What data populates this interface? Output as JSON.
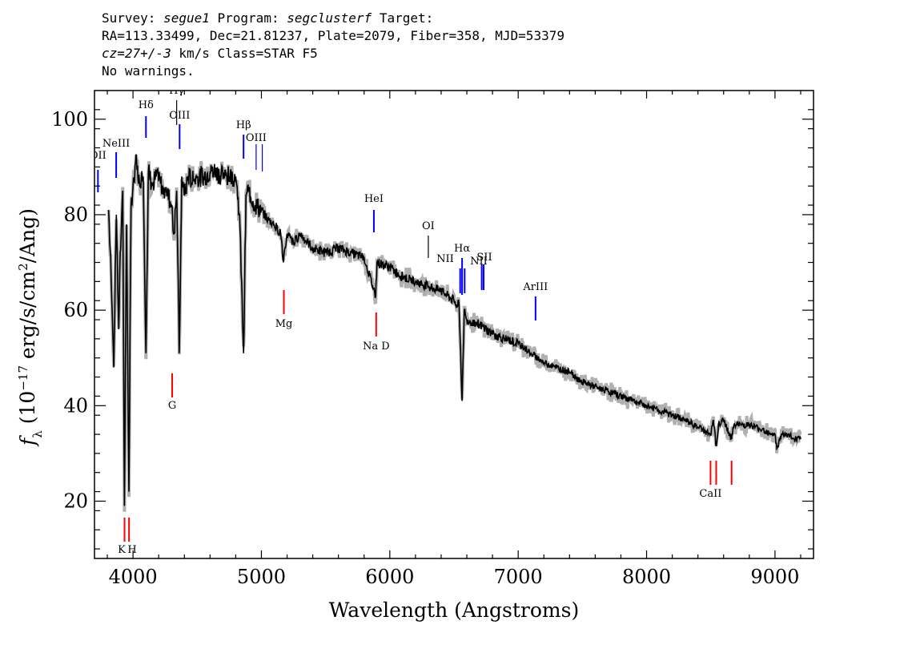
{
  "header": {
    "line1": {
      "survey_label": "Survey:",
      "survey": "segue1",
      "program_label": "Program:",
      "program": "segclusterf",
      "target_label": "Target:"
    },
    "line2": "RA=113.33499, Dec=21.81237, Plate=2079, Fiber=358, MJD=53379",
    "line3": {
      "cz": "cz=27+/-3",
      "rest": "km/s Class=STAR F5"
    },
    "line4": "No warnings."
  },
  "colors": {
    "emission": "#0000ff",
    "absorption": "#ff0000",
    "spectrum": "#000000",
    "error": "#b0b0b0"
  },
  "chart_data": {
    "type": "line",
    "xlabel": "Wavelength (Angstroms)",
    "ylabel": "f_λ (10^-17 erg/s/cm^2/Ang)",
    "xlim": [
      3700,
      9300
    ],
    "ylim": [
      8,
      106
    ],
    "x_ticks": [
      4000,
      5000,
      6000,
      7000,
      8000,
      9000
    ],
    "y_ticks": [
      20,
      40,
      60,
      80,
      100
    ],
    "series": [
      {
        "x": [
          3810,
          3830,
          3850,
          3870,
          3889,
          3900,
          3920,
          3933,
          3950,
          3968,
          3985,
          4000,
          4020,
          4050,
          4080,
          4101,
          4120,
          4150,
          4180,
          4200,
          4230,
          4260,
          4300,
          4320,
          4340,
          4360,
          4380,
          4400,
          4430,
          4470,
          4500,
          4550,
          4600,
          4650,
          4700,
          4750,
          4800,
          4830,
          4861,
          4880,
          4900,
          4950,
          5000,
          5050,
          5100,
          5150,
          5172,
          5200,
          5250,
          5300,
          5400,
          5500,
          5600,
          5700,
          5800,
          5890,
          5900,
          6000,
          6100,
          6200,
          6300,
          6400,
          6500,
          6540,
          6563,
          6580,
          6600,
          6700,
          6800,
          6900,
          7000,
          7100,
          7200,
          7300,
          7400,
          7500,
          7600,
          7700,
          7800,
          7900,
          8000,
          8100,
          8200,
          8300,
          8400,
          8498,
          8520,
          8542,
          8560,
          8600,
          8662,
          8680,
          8700,
          8800,
          8900,
          9000,
          9014,
          9050,
          9100,
          9150,
          9200
        ],
        "y": [
          81,
          67,
          48,
          80,
          56,
          72,
          85,
          19,
          78,
          22,
          82,
          86,
          91,
          87,
          88,
          51,
          89,
          86,
          88,
          87,
          86,
          85,
          82,
          76,
          85,
          51,
          88,
          84,
          88,
          87,
          88,
          88,
          89,
          89,
          88,
          88,
          88,
          80,
          51,
          84,
          85,
          82,
          81,
          79,
          78,
          76,
          70,
          76,
          74,
          76,
          73,
          72,
          73,
          72,
          71,
          63,
          70,
          69,
          67,
          66,
          65,
          64,
          62,
          61,
          41,
          60,
          58,
          57,
          55,
          54,
          53,
          51,
          49,
          48,
          47,
          45,
          44,
          43,
          42,
          41,
          40,
          39,
          38,
          37,
          35.5,
          34,
          37,
          31.5,
          36,
          37,
          33,
          36,
          36,
          36,
          35,
          34,
          31,
          34,
          34,
          33,
          33
        ]
      }
    ],
    "line_markers": [
      {
        "label": "OII",
        "wavelength": 3727,
        "type": "emission"
      },
      {
        "label": "NeIII",
        "wavelength": 3869,
        "type": "emission"
      },
      {
        "label": "Hδ",
        "wavelength": 4101,
        "type": "emission"
      },
      {
        "label": "Hγ",
        "wavelength": 4340,
        "type": "emission"
      },
      {
        "label": "OIII",
        "wavelength": 4363,
        "type": "emission"
      },
      {
        "label": "Hβ",
        "wavelength": 4861,
        "type": "emission"
      },
      {
        "label": "OIII",
        "wavelength": 4959,
        "type": "emission"
      },
      {
        "label": "",
        "wavelength": 5007,
        "type": "emission"
      },
      {
        "label": "HeI",
        "wavelength": 5876,
        "type": "emission"
      },
      {
        "label": "OI",
        "wavelength": 6300,
        "type": "emission"
      },
      {
        "label": "NII",
        "wavelength": 6548,
        "type": "emission"
      },
      {
        "label": "Hα",
        "wavelength": 6563,
        "type": "emission"
      },
      {
        "label": "NII",
        "wavelength": 6583,
        "type": "emission"
      },
      {
        "label": "SII",
        "wavelength": 6716,
        "type": "emission"
      },
      {
        "label": "",
        "wavelength": 6731,
        "type": "emission"
      },
      {
        "label": "ArIII",
        "wavelength": 7135,
        "type": "emission"
      },
      {
        "label": "K",
        "wavelength": 3934,
        "type": "absorption"
      },
      {
        "label": "H",
        "wavelength": 3969,
        "type": "absorption"
      },
      {
        "label": "G",
        "wavelength": 4305,
        "type": "absorption"
      },
      {
        "label": "Mg",
        "wavelength": 5175,
        "type": "absorption"
      },
      {
        "label": "Na D",
        "wavelength": 5894,
        "type": "absorption"
      },
      {
        "label": "CaII",
        "wavelength": 8498,
        "type": "absorption"
      },
      {
        "label": "",
        "wavelength": 8542,
        "type": "absorption"
      },
      {
        "label": "",
        "wavelength": 8662,
        "type": "absorption"
      }
    ]
  }
}
